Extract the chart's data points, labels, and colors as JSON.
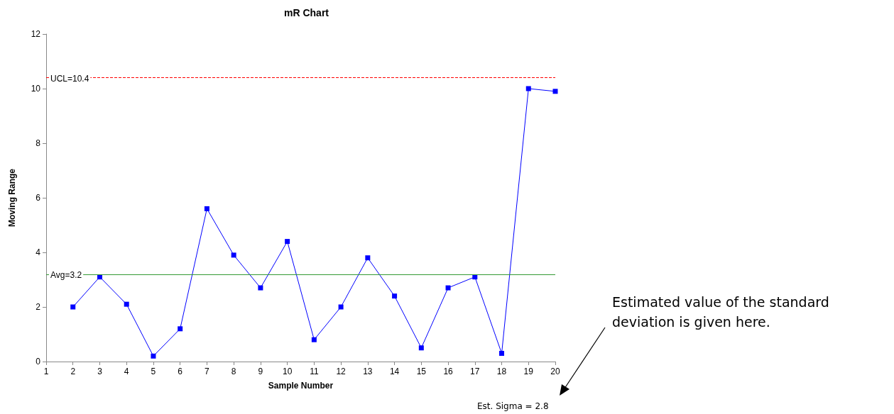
{
  "chart_data": {
    "type": "line",
    "title": "mR Chart",
    "xlabel": "Sample Number",
    "ylabel": "Moving Range",
    "x": [
      2,
      3,
      4,
      5,
      6,
      7,
      8,
      9,
      10,
      11,
      12,
      13,
      14,
      15,
      16,
      17,
      18,
      19,
      20
    ],
    "series": [
      {
        "color": "#0000ff",
        "values": [
          2.0,
          3.1,
          2.1,
          0.2,
          1.2,
          5.6,
          3.9,
          2.7,
          4.4,
          0.8,
          2.0,
          3.8,
          2.4,
          0.5,
          2.7,
          3.1,
          0.3,
          10.0,
          9.9
        ]
      }
    ],
    "xlim": [
      1,
      20
    ],
    "xticks": [
      1,
      2,
      3,
      4,
      5,
      6,
      7,
      8,
      9,
      10,
      11,
      12,
      13,
      14,
      15,
      16,
      17,
      18,
      19,
      20
    ],
    "ylim": [
      0,
      12
    ],
    "yticks": [
      0,
      2,
      4,
      6,
      8,
      10,
      12
    ],
    "ref_lines": [
      {
        "axis": "y",
        "value": 10.4,
        "label": "UCL=10.4",
        "color": "#ff0000",
        "line_style": "dashed"
      },
      {
        "axis": "y",
        "value": 3.2,
        "label": "Avg=3.2",
        "color": "#339933",
        "line_style": "solid"
      }
    ],
    "annotations": [
      "Est. Sigma = 2.8",
      "Estimated value of the standard deviation is given here."
    ],
    "marker": "square",
    "line_style": "solid",
    "grid": false
  }
}
